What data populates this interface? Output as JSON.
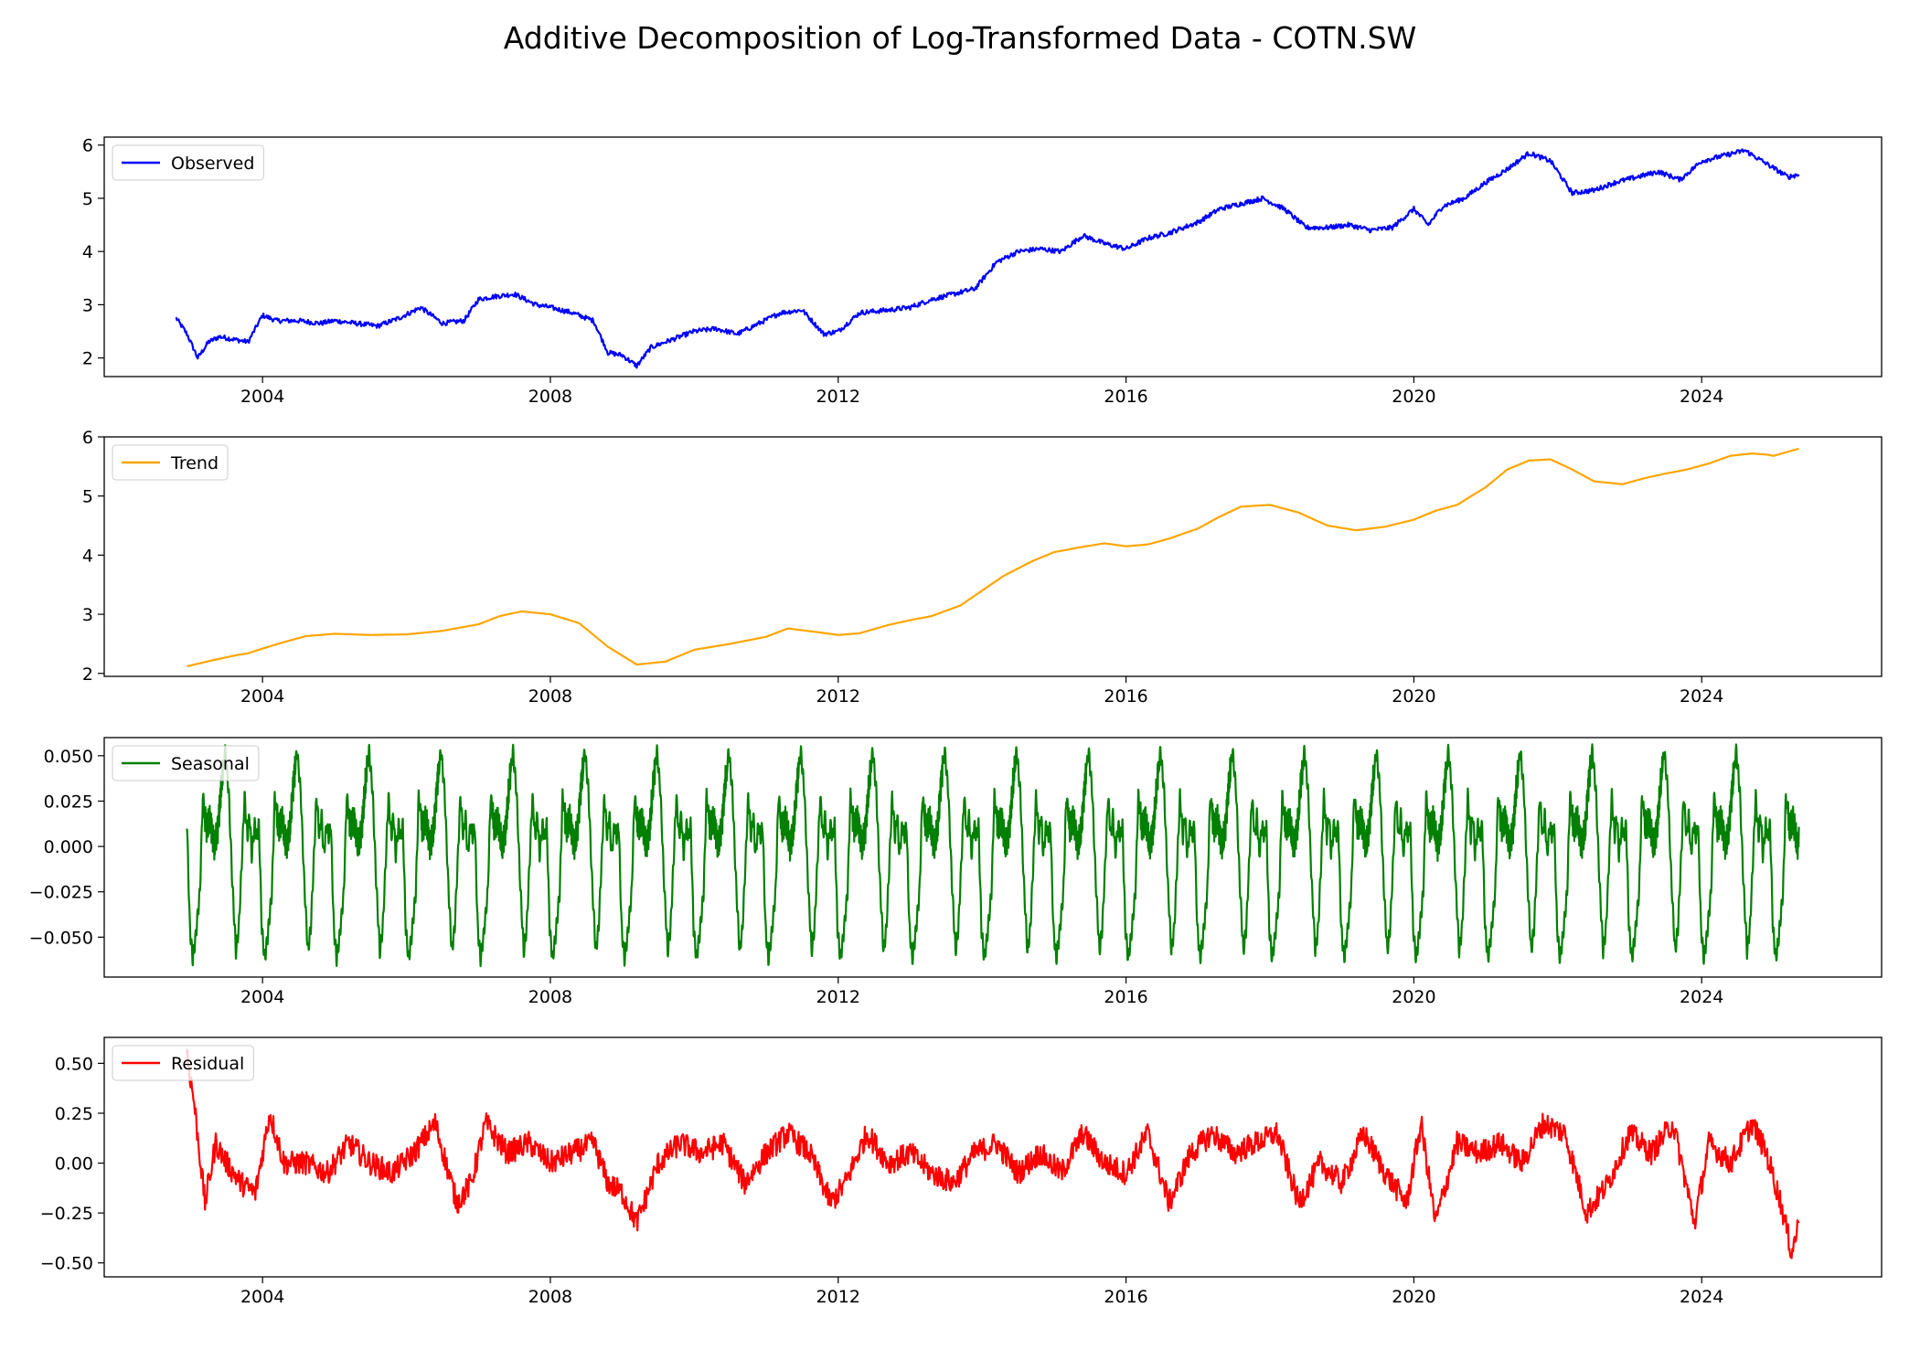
{
  "title": "Additive Decomposition of Log-Transformed Data - COTN.SW",
  "chart_data": [
    {
      "type": "line",
      "series": [
        {
          "name": "Observed",
          "color": "#0000ff",
          "x": [
            2002.8,
            2002.95,
            2003.1,
            2003.25,
            2003.4,
            2003.6,
            2003.8,
            2004.0,
            2004.2,
            2004.5,
            2004.8,
            2005.0,
            2005.3,
            2005.6,
            2005.9,
            2006.2,
            2006.5,
            2006.8,
            2007.0,
            2007.2,
            2007.5,
            2007.8,
            2008.0,
            2008.3,
            2008.6,
            2008.8,
            2009.0,
            2009.2,
            2009.4,
            2009.7,
            2010.0,
            2010.3,
            2010.6,
            2010.9,
            2011.2,
            2011.5,
            2011.8,
            2012.0,
            2012.3,
            2012.7,
            2013.0,
            2013.3,
            2013.6,
            2013.9,
            2014.2,
            2014.5,
            2014.8,
            2015.1,
            2015.4,
            2015.7,
            2016.0,
            2016.3,
            2016.6,
            2017.0,
            2017.3,
            2017.6,
            2017.9,
            2018.2,
            2018.5,
            2018.8,
            2019.1,
            2019.4,
            2019.7,
            2020.0,
            2020.2,
            2020.4,
            2020.7,
            2021.0,
            2021.3,
            2021.6,
            2021.9,
            2022.2,
            2022.5,
            2022.8,
            2023.1,
            2023.4,
            2023.7,
            2024.0,
            2024.3,
            2024.6,
            2024.9,
            2025.2,
            2025.35
          ],
          "y": [
            2.75,
            2.45,
            2.0,
            2.3,
            2.4,
            2.35,
            2.3,
            2.8,
            2.7,
            2.7,
            2.65,
            2.7,
            2.65,
            2.6,
            2.75,
            2.95,
            2.65,
            2.7,
            3.1,
            3.15,
            3.2,
            3.0,
            2.95,
            2.85,
            2.7,
            2.1,
            2.05,
            1.85,
            2.2,
            2.35,
            2.5,
            2.55,
            2.45,
            2.65,
            2.85,
            2.9,
            2.45,
            2.5,
            2.85,
            2.9,
            2.95,
            3.1,
            3.2,
            3.3,
            3.8,
            4.0,
            4.05,
            4.0,
            4.3,
            4.15,
            4.05,
            4.25,
            4.35,
            4.55,
            4.8,
            4.9,
            5.0,
            4.8,
            4.45,
            4.45,
            4.5,
            4.4,
            4.45,
            4.8,
            4.5,
            4.85,
            5.0,
            5.3,
            5.55,
            5.85,
            5.7,
            5.1,
            5.15,
            5.3,
            5.4,
            5.5,
            5.35,
            5.7,
            5.8,
            5.9,
            5.65,
            5.4,
            5.45
          ]
        }
      ],
      "xlim": [
        2001.8,
        2026.5
      ],
      "ylim": [
        1.65,
        6.15
      ],
      "xticks": [
        "2004",
        "2008",
        "2012",
        "2016",
        "2020",
        "2024"
      ],
      "yticks": [
        "2",
        "3",
        "4",
        "5",
        "6"
      ],
      "legend": "upper left"
    },
    {
      "type": "line",
      "series": [
        {
          "name": "Trend",
          "color": "#ffa500",
          "x": [
            2002.95,
            2003.3,
            2003.6,
            2003.8,
            2004.0,
            2004.3,
            2004.6,
            2005.0,
            2005.5,
            2006.0,
            2006.5,
            2007.0,
            2007.3,
            2007.6,
            2008.0,
            2008.4,
            2008.8,
            2009.2,
            2009.6,
            2010.0,
            2010.5,
            2011.0,
            2011.3,
            2011.7,
            2012.0,
            2012.3,
            2012.7,
            2013.0,
            2013.3,
            2013.7,
            2014.0,
            2014.3,
            2014.7,
            2015.0,
            2015.3,
            2015.7,
            2016.0,
            2016.3,
            2016.6,
            2017.0,
            2017.3,
            2017.6,
            2018.0,
            2018.4,
            2018.8,
            2019.2,
            2019.6,
            2020.0,
            2020.3,
            2020.6,
            2021.0,
            2021.3,
            2021.6,
            2021.9,
            2022.2,
            2022.5,
            2022.9,
            2023.2,
            2023.5,
            2023.8,
            2024.1,
            2024.4,
            2024.7,
            2024.9,
            2025.0,
            2025.35
          ],
          "y": [
            2.12,
            2.22,
            2.3,
            2.34,
            2.42,
            2.53,
            2.63,
            2.67,
            2.65,
            2.66,
            2.72,
            2.83,
            2.97,
            3.05,
            3.0,
            2.85,
            2.45,
            2.15,
            2.2,
            2.4,
            2.5,
            2.62,
            2.76,
            2.7,
            2.65,
            2.68,
            2.82,
            2.9,
            2.97,
            3.15,
            3.4,
            3.65,
            3.9,
            4.05,
            4.12,
            4.2,
            4.15,
            4.18,
            4.28,
            4.45,
            4.65,
            4.82,
            4.85,
            4.72,
            4.5,
            4.42,
            4.48,
            4.6,
            4.75,
            4.85,
            5.15,
            5.45,
            5.6,
            5.62,
            5.45,
            5.25,
            5.2,
            5.3,
            5.38,
            5.45,
            5.55,
            5.68,
            5.72,
            5.7,
            5.68,
            5.8
          ]
        }
      ],
      "xlim": [
        2001.8,
        2026.5
      ],
      "ylim": [
        1.95,
        6.0
      ],
      "xticks": [
        "2004",
        "2008",
        "2012",
        "2016",
        "2020",
        "2024"
      ],
      "yticks": [
        "2",
        "3",
        "4",
        "5",
        "6"
      ],
      "legend": "upper left"
    },
    {
      "type": "line",
      "series": [
        {
          "name": "Seasonal",
          "color": "#008000",
          "period_years": 1,
          "start": 2002.95,
          "end": 2025.35,
          "cycle_phase": [
            0,
            0.04,
            0.08,
            0.12,
            0.18,
            0.22,
            0.27,
            0.32,
            0.38,
            0.43,
            0.48,
            0.53,
            0.58,
            0.63,
            0.68,
            0.72,
            0.76,
            0.8,
            0.84,
            0.87,
            0.9,
            0.94,
            0.97,
            1.0
          ],
          "cycle_values": [
            0.012,
            -0.045,
            -0.062,
            -0.05,
            -0.025,
            0.028,
            0.01,
            0.015,
            0.0,
            0.01,
            0.035,
            0.053,
            0.03,
            -0.02,
            -0.058,
            -0.045,
            -0.01,
            0.028,
            0.005,
            0.018,
            -0.005,
            0.012,
            0.005,
            0.012
          ]
        }
      ],
      "xlim": [
        2001.8,
        2026.5
      ],
      "ylim": [
        -0.072,
        0.06
      ],
      "xticks": [
        "2004",
        "2008",
        "2012",
        "2016",
        "2020",
        "2024"
      ],
      "yticks": [
        "0.050",
        "0.025",
        "0.000",
        "−0.025",
        "−0.050"
      ],
      "ytick_values": [
        0.05,
        0.025,
        0,
        -0.025,
        -0.05
      ],
      "legend": "upper left"
    },
    {
      "type": "line",
      "series": [
        {
          "name": "Residual",
          "color": "#ff0000",
          "x": [
            2002.95,
            2003.05,
            2003.2,
            2003.35,
            2003.5,
            2003.7,
            2003.9,
            2004.1,
            2004.3,
            2004.6,
            2004.9,
            2005.2,
            2005.5,
            2005.8,
            2006.1,
            2006.4,
            2006.7,
            2006.9,
            2007.1,
            2007.4,
            2007.7,
            2008.0,
            2008.3,
            2008.6,
            2008.8,
            2009.0,
            2009.2,
            2009.5,
            2009.8,
            2010.1,
            2010.4,
            2010.7,
            2011.0,
            2011.3,
            2011.6,
            2011.9,
            2012.1,
            2012.4,
            2012.7,
            2013.0,
            2013.3,
            2013.6,
            2013.9,
            2014.2,
            2014.5,
            2014.8,
            2015.1,
            2015.4,
            2015.7,
            2016.0,
            2016.3,
            2016.6,
            2016.9,
            2017.2,
            2017.5,
            2017.8,
            2018.1,
            2018.4,
            2018.7,
            2019.0,
            2019.3,
            2019.6,
            2019.9,
            2020.1,
            2020.3,
            2020.6,
            2020.9,
            2021.2,
            2021.5,
            2021.8,
            2022.1,
            2022.4,
            2022.7,
            2023.0,
            2023.3,
            2023.6,
            2023.9,
            2024.1,
            2024.4,
            2024.7,
            2024.9,
            2025.1,
            2025.25,
            2025.35
          ],
          "y": [
            0.55,
            0.3,
            -0.2,
            0.1,
            0.0,
            -0.1,
            -0.15,
            0.25,
            0.0,
            0.0,
            -0.05,
            0.1,
            0.0,
            -0.05,
            0.05,
            0.2,
            -0.2,
            -0.1,
            0.2,
            0.05,
            0.1,
            0.0,
            0.05,
            0.1,
            -0.1,
            -0.15,
            -0.3,
            0.0,
            0.1,
            0.05,
            0.1,
            -0.1,
            0.05,
            0.15,
            0.05,
            -0.2,
            -0.1,
            0.15,
            0.0,
            0.05,
            -0.05,
            -0.1,
            0.05,
            0.1,
            -0.05,
            0.05,
            -0.05,
            0.15,
            0.0,
            -0.05,
            0.15,
            -0.2,
            0.05,
            0.15,
            0.05,
            0.1,
            0.15,
            -0.2,
            0.0,
            -0.1,
            0.15,
            -0.05,
            -0.2,
            0.2,
            -0.3,
            0.1,
            0.05,
            0.1,
            0.0,
            0.2,
            0.15,
            -0.25,
            -0.1,
            0.15,
            0.05,
            0.2,
            -0.3,
            0.1,
            0.0,
            0.2,
            0.05,
            -0.2,
            -0.45,
            -0.3
          ]
        }
      ],
      "xlim": [
        2001.8,
        2026.5
      ],
      "ylim": [
        -0.57,
        0.63
      ],
      "xticks": [
        "2004",
        "2008",
        "2012",
        "2016",
        "2020",
        "2024"
      ],
      "yticks": [
        "0.50",
        "0.25",
        "0.00",
        "−0.25",
        "−0.50"
      ],
      "ytick_values": [
        0.5,
        0.25,
        0,
        -0.25,
        -0.5
      ],
      "legend": "upper left"
    }
  ]
}
